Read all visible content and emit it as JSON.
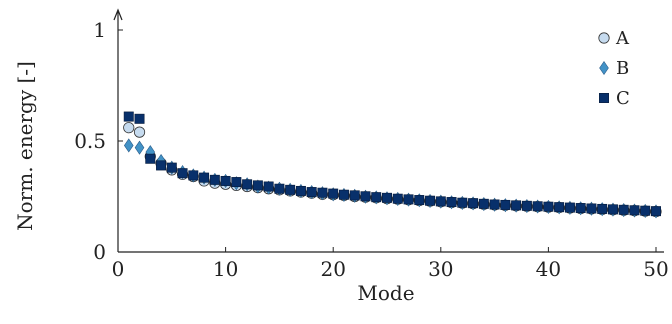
{
  "chart_data": {
    "type": "scatter",
    "xlabel": "Mode",
    "ylabel": "Norm. energy [-]",
    "xlim": [
      0,
      50
    ],
    "ylim": [
      0,
      1
    ],
    "xticks": [
      "0",
      "10",
      "20",
      "30",
      "40",
      "50"
    ],
    "yticks": [
      "0",
      "0.5",
      "1"
    ],
    "grid": false,
    "legend_position": "top-right",
    "x": [
      1,
      2,
      3,
      4,
      5,
      6,
      7,
      8,
      9,
      10,
      11,
      12,
      13,
      14,
      15,
      16,
      17,
      18,
      19,
      20,
      21,
      22,
      23,
      24,
      25,
      26,
      27,
      28,
      29,
      30,
      31,
      32,
      33,
      34,
      35,
      36,
      37,
      38,
      39,
      40,
      41,
      42,
      43,
      44,
      45,
      46,
      47,
      48,
      49,
      50
    ],
    "series": [
      {
        "name": "A",
        "marker": "circle",
        "color": "#c6dbef",
        "values": [
          0.56,
          0.54,
          0.43,
          0.4,
          0.37,
          0.35,
          0.34,
          0.32,
          0.31,
          0.305,
          0.3,
          0.295,
          0.29,
          0.285,
          0.28,
          0.275,
          0.27,
          0.265,
          0.26,
          0.258,
          0.255,
          0.25,
          0.247,
          0.244,
          0.24,
          0.238,
          0.235,
          0.232,
          0.229,
          0.226,
          0.223,
          0.22,
          0.218,
          0.215,
          0.212,
          0.21,
          0.208,
          0.206,
          0.204,
          0.202,
          0.2,
          0.198,
          0.196,
          0.194,
          0.192,
          0.19,
          0.188,
          0.186,
          0.184,
          0.182
        ]
      },
      {
        "name": "B",
        "marker": "diamond",
        "color": "#4292c6",
        "values": [
          0.48,
          0.47,
          0.45,
          0.41,
          0.38,
          0.36,
          0.345,
          0.335,
          0.325,
          0.32,
          0.31,
          0.305,
          0.295,
          0.29,
          0.285,
          0.28,
          0.275,
          0.27,
          0.265,
          0.26,
          0.257,
          0.253,
          0.249,
          0.246,
          0.242,
          0.239,
          0.236,
          0.233,
          0.23,
          0.227,
          0.224,
          0.221,
          0.219,
          0.216,
          0.213,
          0.211,
          0.209,
          0.207,
          0.205,
          0.203,
          0.201,
          0.199,
          0.197,
          0.195,
          0.193,
          0.191,
          0.189,
          0.187,
          0.185,
          0.183
        ]
      },
      {
        "name": "C",
        "marker": "square",
        "color": "#08306b",
        "values": [
          0.61,
          0.6,
          0.42,
          0.39,
          0.38,
          0.355,
          0.345,
          0.335,
          0.325,
          0.32,
          0.315,
          0.305,
          0.3,
          0.295,
          0.285,
          0.28,
          0.275,
          0.27,
          0.267,
          0.263,
          0.258,
          0.255,
          0.251,
          0.247,
          0.244,
          0.24,
          0.237,
          0.234,
          0.231,
          0.228,
          0.225,
          0.222,
          0.22,
          0.217,
          0.214,
          0.212,
          0.21,
          0.208,
          0.206,
          0.204,
          0.202,
          0.2,
          0.198,
          0.196,
          0.194,
          0.192,
          0.19,
          0.188,
          0.186,
          0.184
        ]
      }
    ]
  }
}
